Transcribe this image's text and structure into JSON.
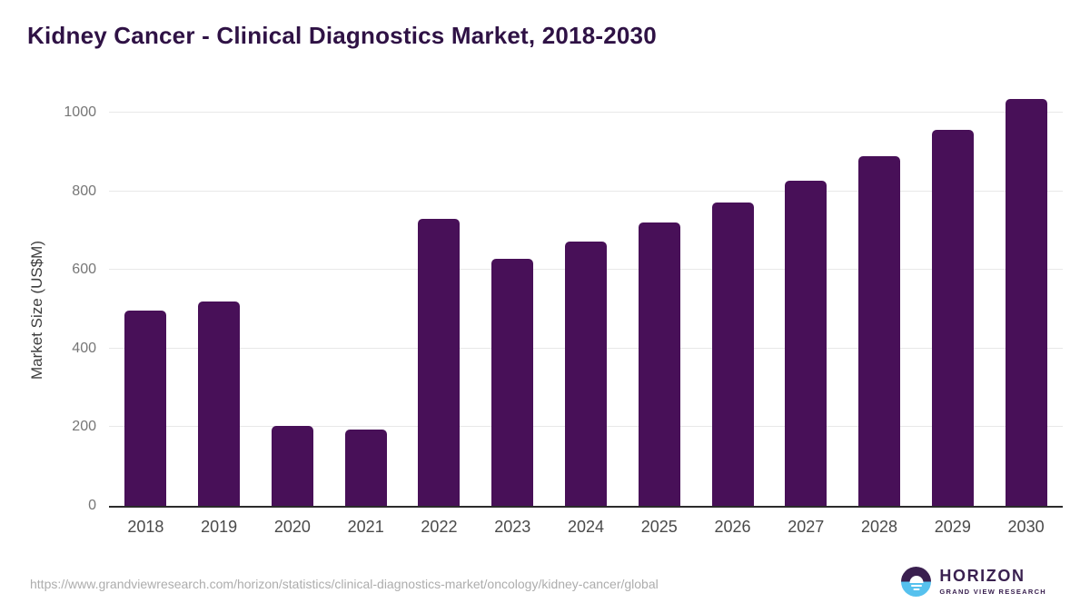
{
  "header": {
    "title": "Kidney Cancer - Clinical Diagnostics Market, 2018-2030"
  },
  "chart_data": {
    "type": "bar",
    "title": "Kidney Cancer - Clinical Diagnostics Market, 2018-2030",
    "categories": [
      "2018",
      "2019",
      "2020",
      "2021",
      "2022",
      "2023",
      "2024",
      "2025",
      "2026",
      "2027",
      "2028",
      "2029",
      "2030"
    ],
    "values": [
      495,
      518,
      202,
      192,
      727,
      626,
      669,
      717,
      768,
      824,
      886,
      952,
      1029
    ],
    "xlabel": "",
    "ylabel": "Market Size (US$M)",
    "ylim": [
      0,
      1000
    ],
    "yticks": [
      0,
      200,
      400,
      600,
      800,
      1000
    ],
    "grid": "horizontal",
    "legend": "none",
    "bar_color": "#481058"
  },
  "footer": {
    "source_url": "https://www.grandviewresearch.com/horizon/statistics/clinical-diagnostics-market/oncology/kidney-cancer/global",
    "logo": {
      "name": "HORIZON",
      "subtitle": "GRAND VIEW RESEARCH"
    }
  },
  "colors": {
    "bar": "#481058",
    "title": "#2f1245",
    "gridline": "#e8e8e8",
    "axis_line": "#2b2b2b",
    "logo_purple": "#3a1f4f",
    "logo_blue": "#56c1ee"
  }
}
